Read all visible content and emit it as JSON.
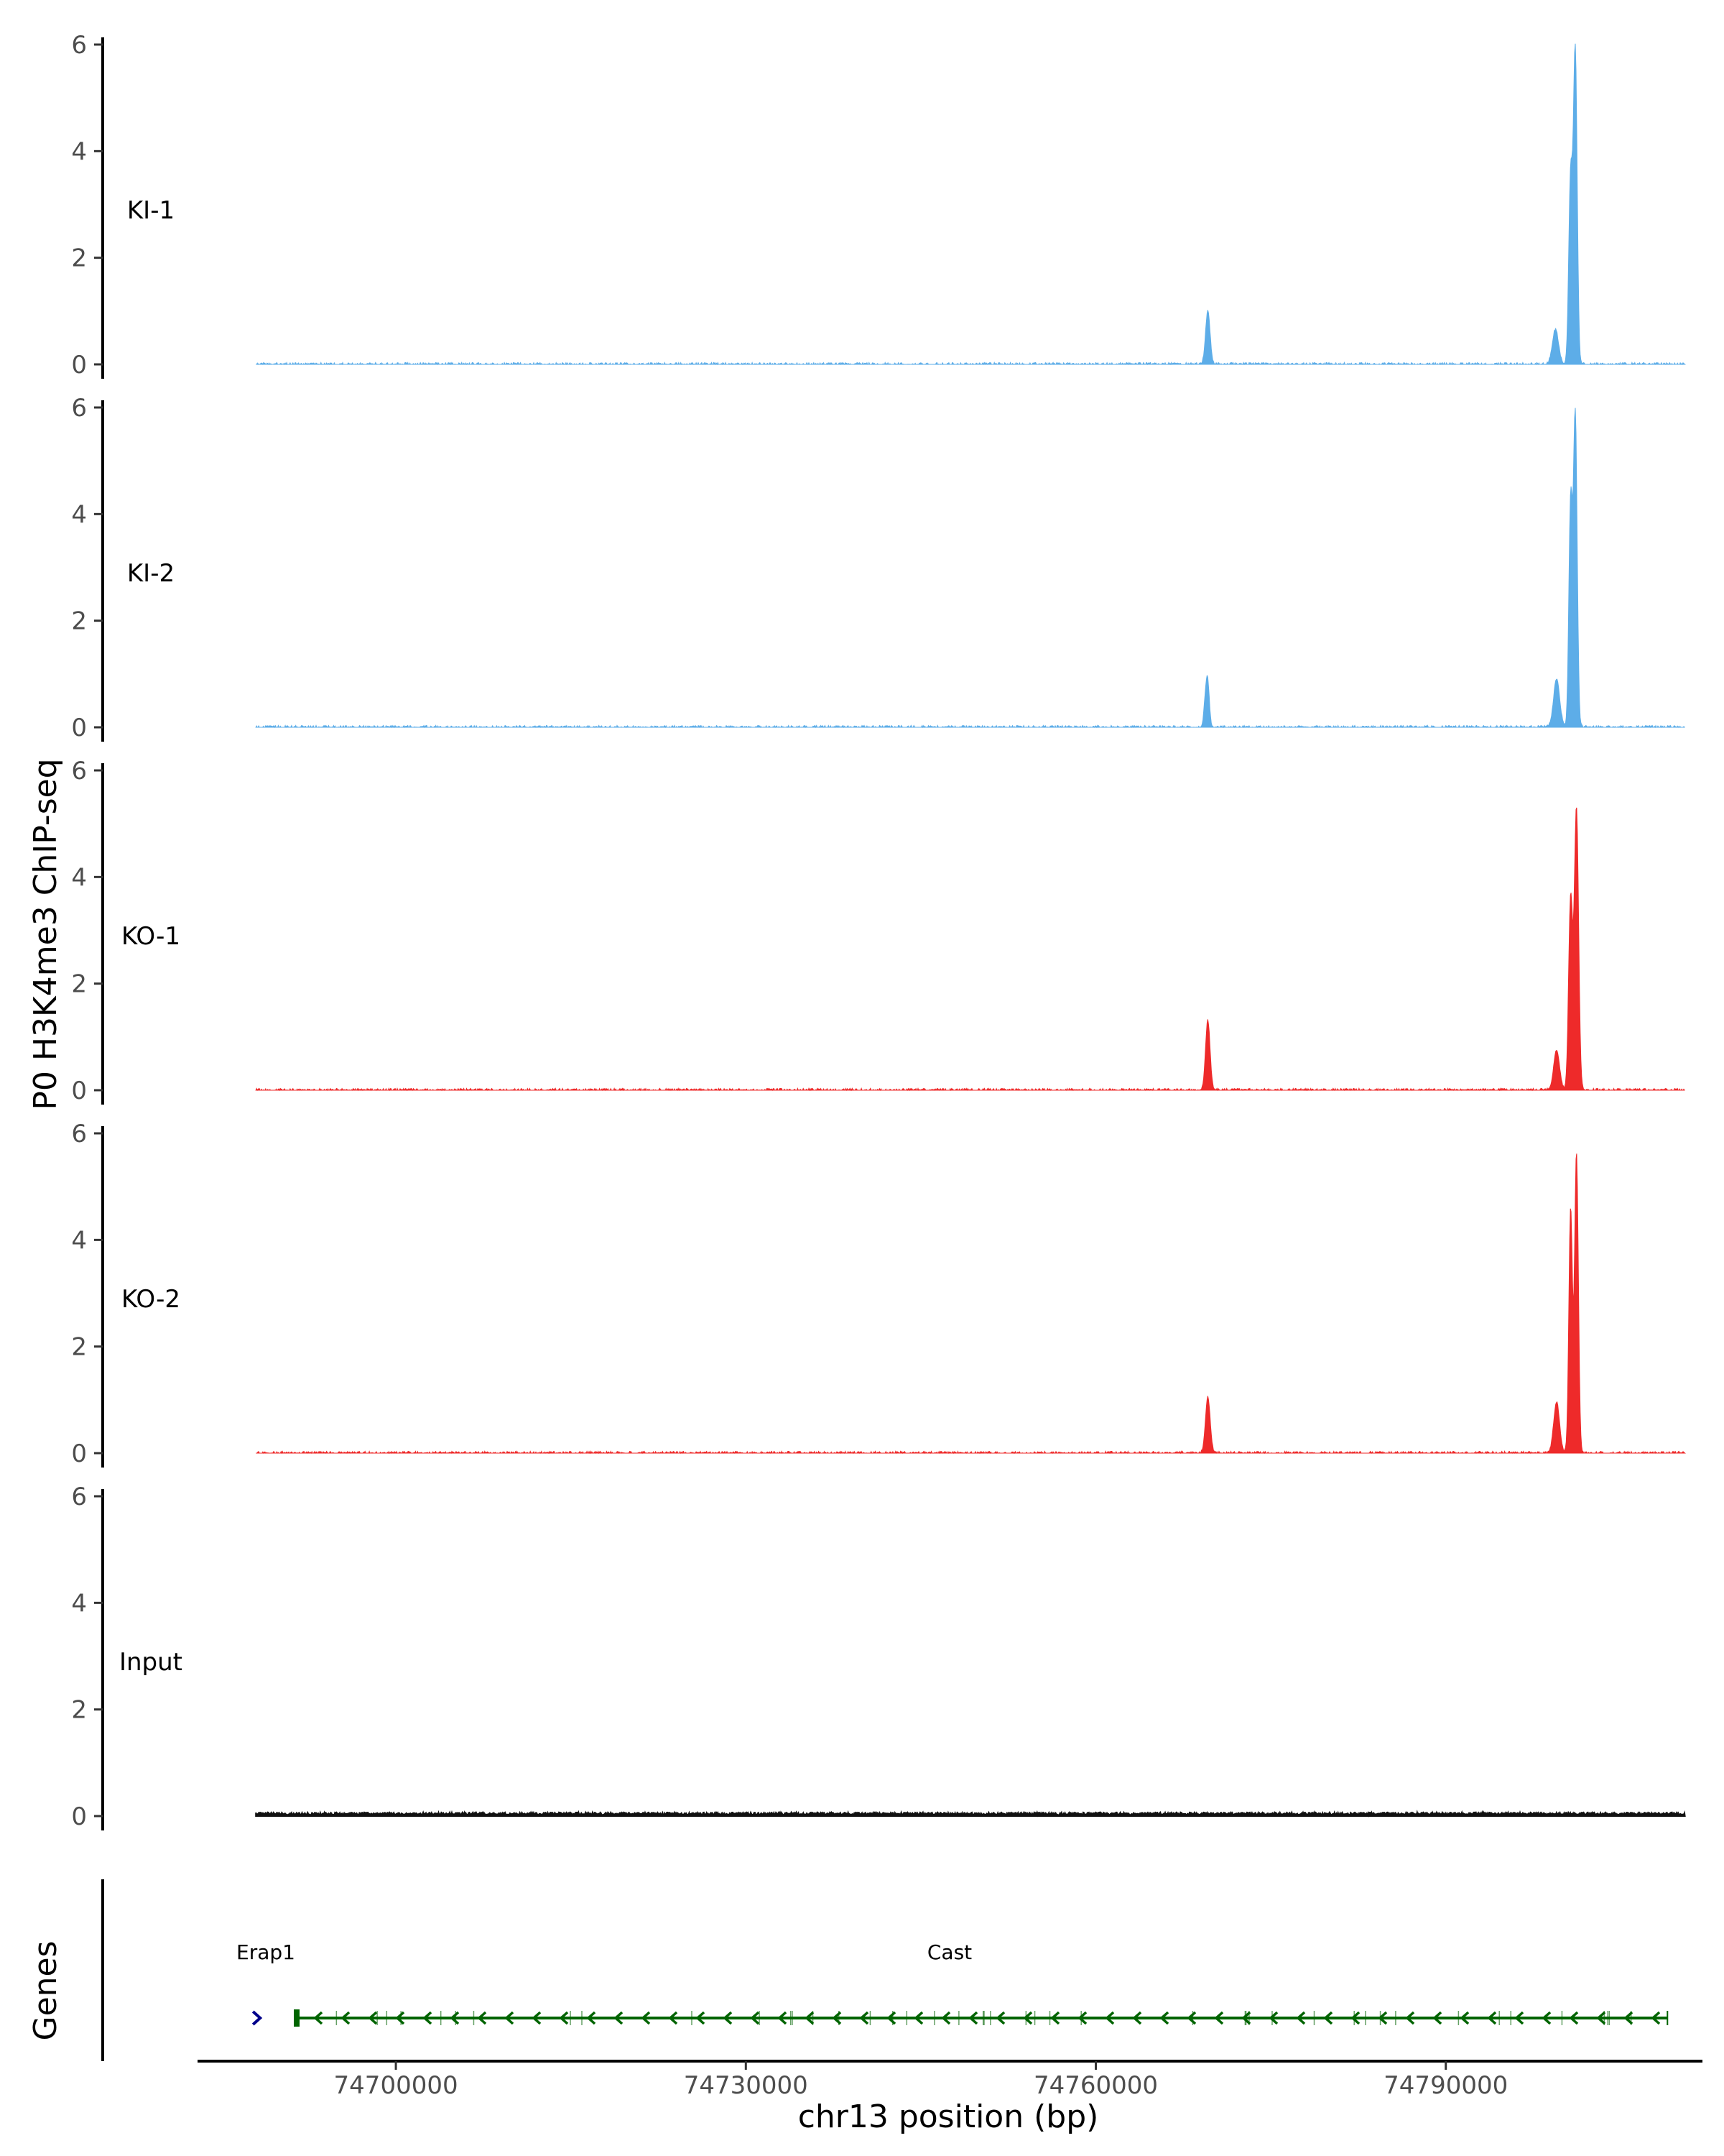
{
  "chart_data": {
    "type": "area",
    "ylabel": "P0 H3K4me3 ChIP-seq",
    "xlabel": "chr13 position (bp)",
    "genes_label": "Genes",
    "x_range": [
      74683000,
      74812000
    ],
    "y_range": [
      0,
      6
    ],
    "y_ticks": [
      "0",
      "2",
      "4",
      "6"
    ],
    "x_ticks": [
      {
        "value": 74700000,
        "label": "74700000"
      },
      {
        "value": 74730000,
        "label": "74730000"
      },
      {
        "value": 74760000,
        "label": "74760000"
      },
      {
        "value": 74790000,
        "label": "74790000"
      }
    ],
    "colors": {
      "KI": "#5dade8",
      "KO": "#ee2a2a",
      "Input": "#111111",
      "gene": "#006400",
      "gene_other": "#00008b",
      "axis": "#000000"
    },
    "series": [
      {
        "name": "KI-1",
        "color": "#5dade8",
        "peaks": [
          {
            "center": 74769600,
            "height": 1.0,
            "sigma": 190
          },
          {
            "center": 74799400,
            "height": 0.65,
            "sigma": 260
          },
          {
            "center": 74800700,
            "height": 3.5,
            "sigma": 160
          },
          {
            "center": 74801100,
            "height": 5.85,
            "sigma": 160
          }
        ]
      },
      {
        "name": "KI-2",
        "color": "#5dade8",
        "peaks": [
          {
            "center": 74769400,
            "height": 0.45,
            "sigma": 140
          },
          {
            "center": 74769600,
            "height": 0.75,
            "sigma": 140
          },
          {
            "center": 74799500,
            "height": 0.9,
            "sigma": 260
          },
          {
            "center": 74800700,
            "height": 4.2,
            "sigma": 150
          },
          {
            "center": 74801100,
            "height": 5.85,
            "sigma": 160
          }
        ]
      },
      {
        "name": "KO-1",
        "color": "#ee2a2a",
        "peaks": [
          {
            "center": 74769600,
            "height": 1.3,
            "sigma": 190
          },
          {
            "center": 74799500,
            "height": 0.75,
            "sigma": 250
          },
          {
            "center": 74800700,
            "height": 3.6,
            "sigma": 170
          },
          {
            "center": 74801200,
            "height": 5.3,
            "sigma": 180
          }
        ]
      },
      {
        "name": "KO-2",
        "color": "#ee2a2a",
        "peaks": [
          {
            "center": 74769600,
            "height": 1.05,
            "sigma": 200
          },
          {
            "center": 74799500,
            "height": 0.95,
            "sigma": 250
          },
          {
            "center": 74800700,
            "height": 4.6,
            "sigma": 150
          },
          {
            "center": 74801200,
            "height": 5.65,
            "sigma": 160
          }
        ]
      },
      {
        "name": "Input",
        "color": "#111111",
        "peaks": []
      }
    ],
    "genes": [
      {
        "name": "Erap1",
        "start": 74688000,
        "end": 74689000,
        "strand": "+"
      },
      {
        "name": "Cast",
        "start": 74691500,
        "end": 74809000,
        "strand": "-"
      }
    ]
  }
}
